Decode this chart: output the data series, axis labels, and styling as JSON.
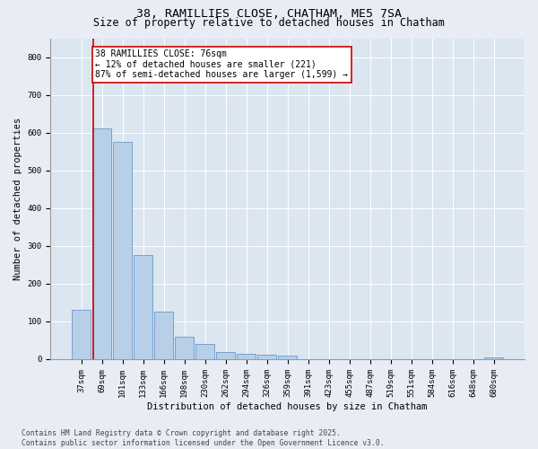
{
  "title": "38, RAMILLIES CLOSE, CHATHAM, ME5 7SA",
  "subtitle": "Size of property relative to detached houses in Chatham",
  "xlabel": "Distribution of detached houses by size in Chatham",
  "ylabel": "Number of detached properties",
  "categories": [
    "37sqm",
    "69sqm",
    "101sqm",
    "133sqm",
    "166sqm",
    "198sqm",
    "230sqm",
    "262sqm",
    "294sqm",
    "326sqm",
    "359sqm",
    "391sqm",
    "423sqm",
    "455sqm",
    "487sqm",
    "519sqm",
    "551sqm",
    "584sqm",
    "616sqm",
    "648sqm",
    "680sqm"
  ],
  "values": [
    130,
    610,
    575,
    275,
    127,
    60,
    40,
    20,
    15,
    12,
    10,
    0,
    0,
    0,
    0,
    0,
    0,
    0,
    0,
    0,
    5
  ],
  "bar_color": "#b8cfe8",
  "bar_edge_color": "#6699cc",
  "vline_color": "#cc0000",
  "vline_x": 0.575,
  "annotation_text": "38 RAMILLIES CLOSE: 76sqm\n← 12% of detached houses are smaller (221)\n87% of semi-detached houses are larger (1,599) →",
  "annotation_box_color": "#ffffff",
  "annotation_box_edge_color": "#cc0000",
  "ylim": [
    0,
    850
  ],
  "yticks": [
    0,
    100,
    200,
    300,
    400,
    500,
    600,
    700,
    800
  ],
  "footnote": "Contains HM Land Registry data © Crown copyright and database right 2025.\nContains public sector information licensed under the Open Government Licence v3.0.",
  "background_color": "#e8edf5",
  "plot_background_color": "#dce6f0",
  "title_fontsize": 9.5,
  "subtitle_fontsize": 8.5,
  "axis_label_fontsize": 7.5,
  "tick_fontsize": 6.5,
  "annotation_fontsize": 7,
  "footnote_fontsize": 5.8
}
